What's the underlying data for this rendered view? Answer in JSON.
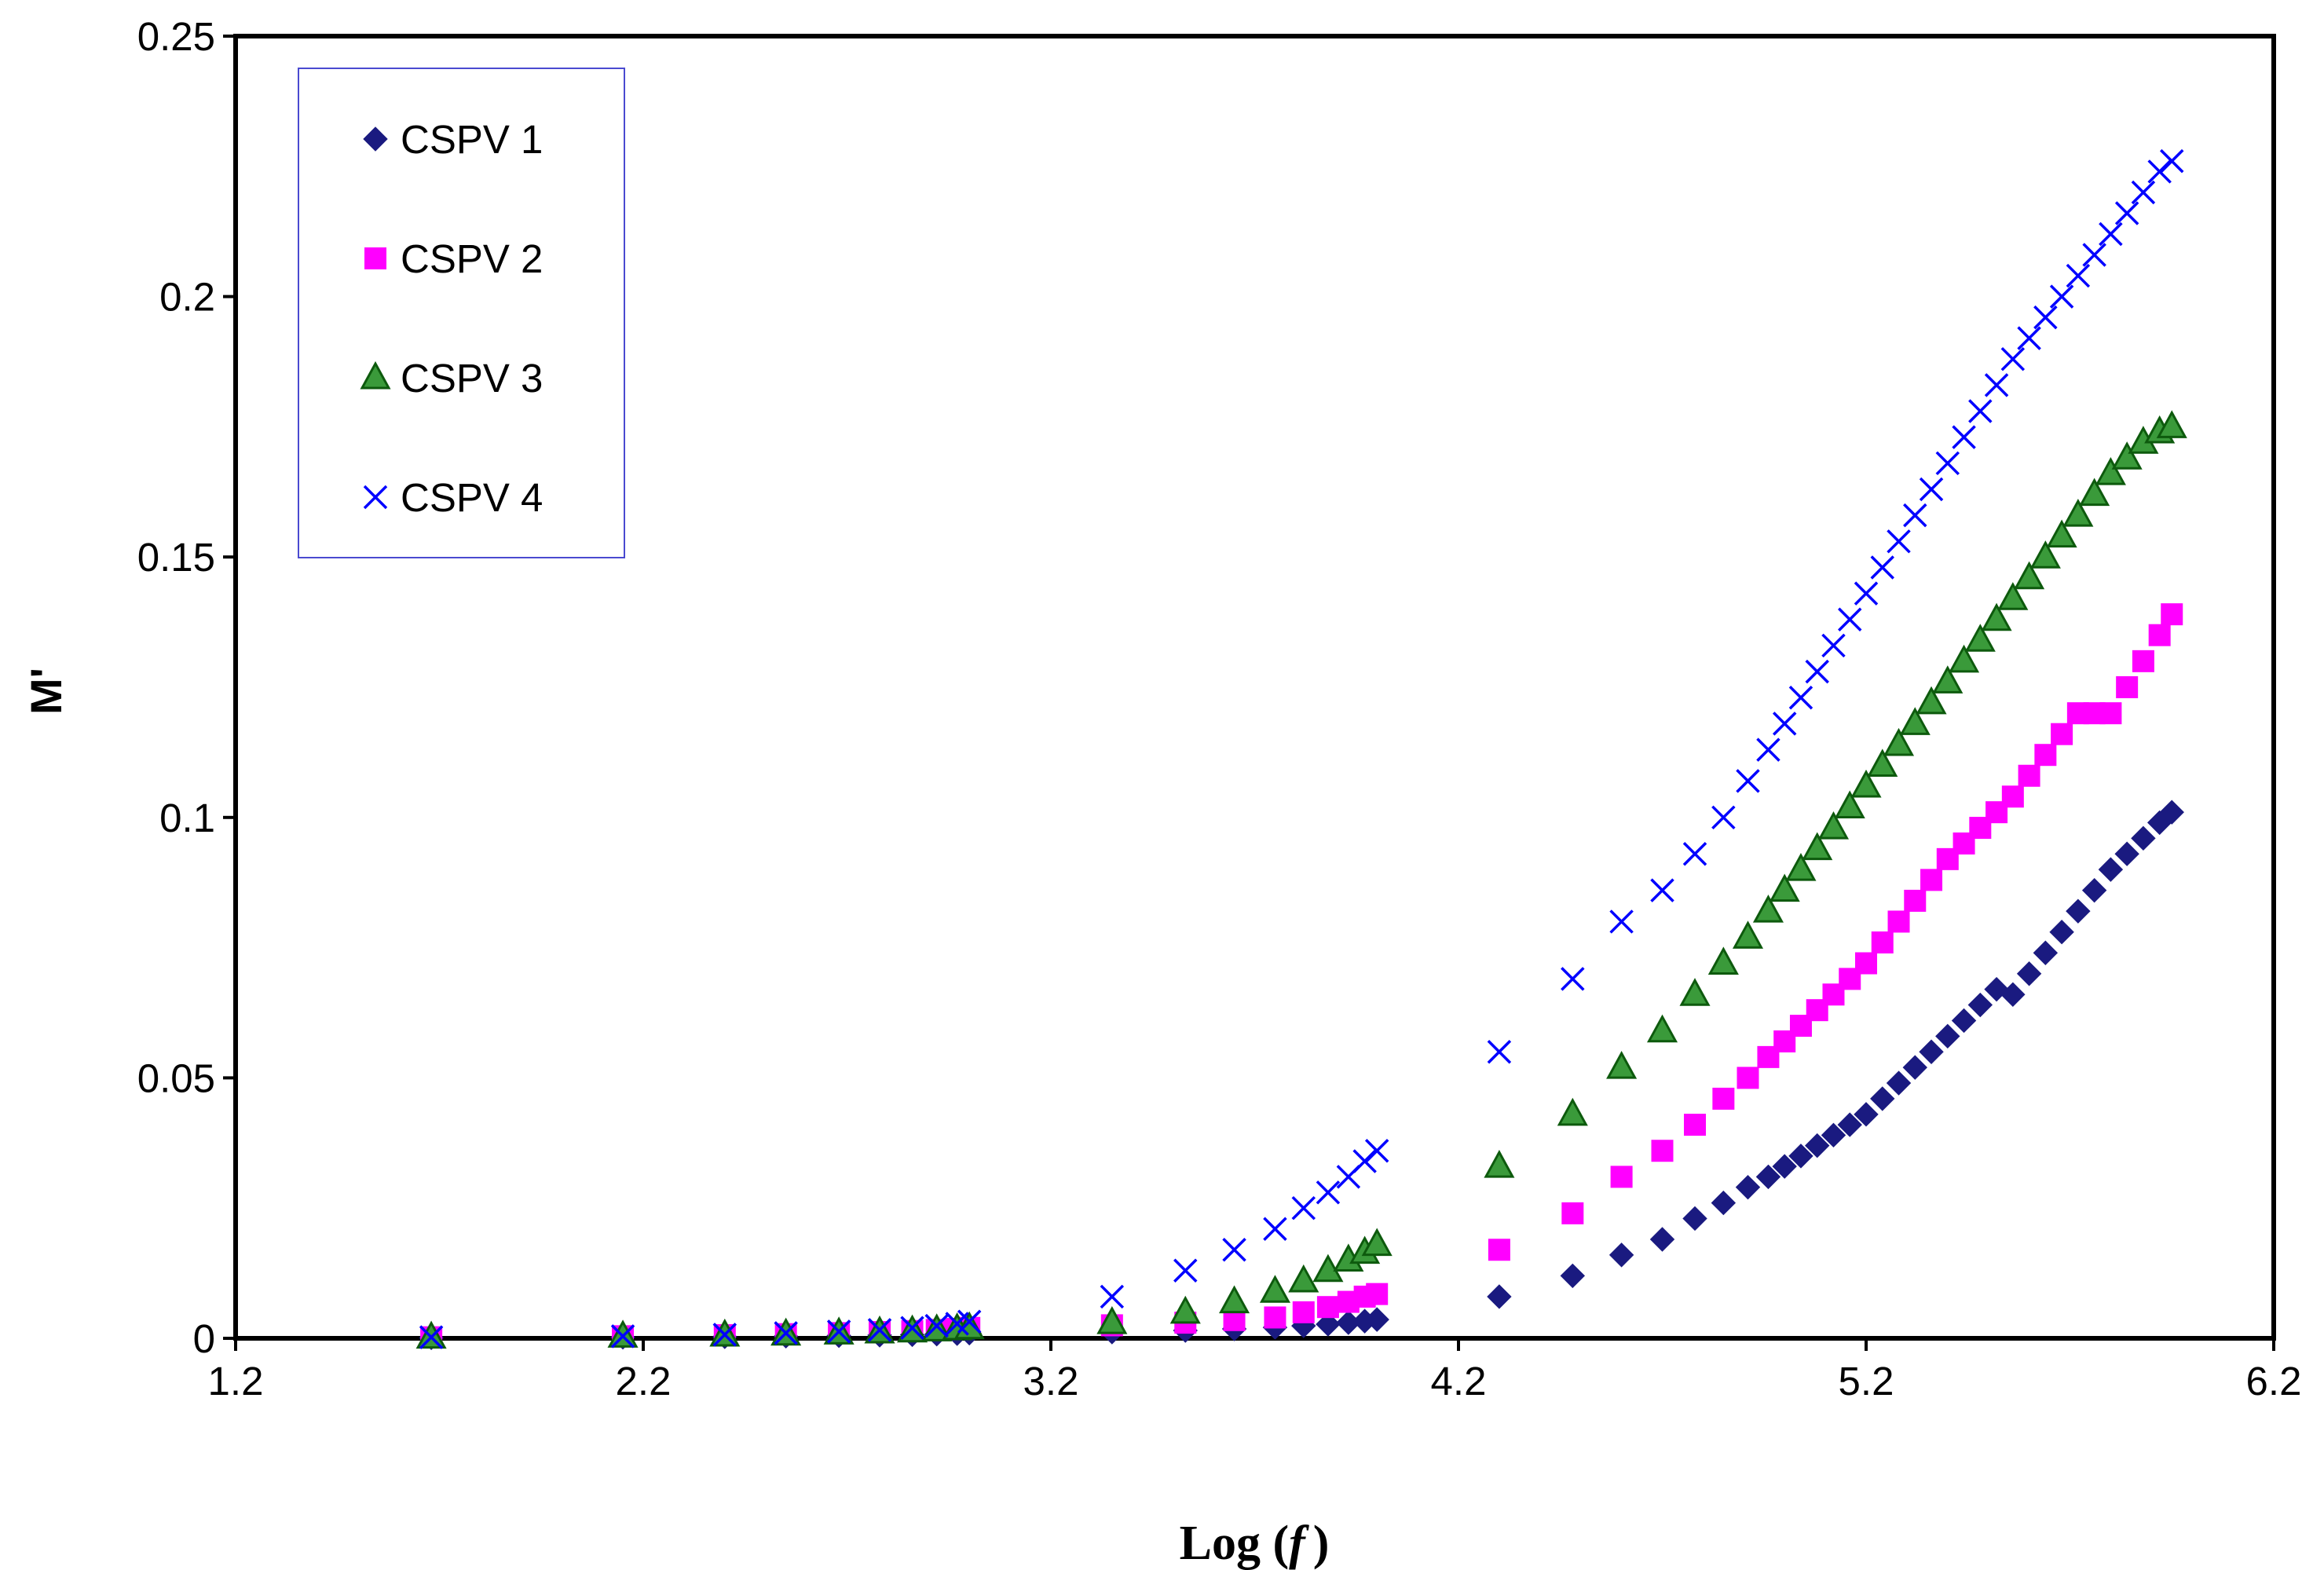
{
  "chart_data": {
    "type": "scatter",
    "xlabel": "Log (f)",
    "xlabel_main": "Log (",
    "xlabel_var": "f",
    "xlabel_close": ")",
    "ylabel": "M'",
    "xlim": [
      1.2,
      6.2
    ],
    "ylim": [
      0,
      0.25
    ],
    "xticks": [
      "1.2",
      "2.2",
      "3.2",
      "4.2",
      "5.2",
      "6.2"
    ],
    "yticks": [
      "0",
      "0.05",
      "0.1",
      "0.15",
      "0.2",
      "0.25"
    ],
    "legend_position": "top-left",
    "grid": false,
    "colors": {
      "CSPV 1": "#1A1A80",
      "CSPV 2": "#FF00FF",
      "CSPV 3": "#1E8B1E",
      "CSPV 4": "#0000FF"
    },
    "series": [
      {
        "name": "CSPV 1",
        "marker": "diamond",
        "x": [
          1.68,
          2.15,
          2.4,
          2.55,
          2.68,
          2.78,
          2.86,
          2.92,
          2.97,
          3.0,
          3.35,
          3.53,
          3.65,
          3.75,
          3.82,
          3.88,
          3.93,
          3.97,
          4.0,
          4.3,
          4.48,
          4.6,
          4.7,
          4.78,
          4.85,
          4.91,
          4.96,
          5.0,
          5.04,
          5.08,
          5.12,
          5.16,
          5.2,
          5.24,
          5.28,
          5.32,
          5.36,
          5.4,
          5.44,
          5.48,
          5.52,
          5.56,
          5.6,
          5.64,
          5.68,
          5.72,
          5.76,
          5.8,
          5.84,
          5.88,
          5.92,
          5.95
        ],
        "y": [
          0.0001,
          0.0002,
          0.0003,
          0.0004,
          0.0005,
          0.0006,
          0.0007,
          0.0008,
          0.0009,
          0.001,
          0.0012,
          0.0015,
          0.0018,
          0.0021,
          0.0024,
          0.0027,
          0.003,
          0.0033,
          0.0036,
          0.008,
          0.012,
          0.016,
          0.019,
          0.023,
          0.026,
          0.029,
          0.031,
          0.033,
          0.035,
          0.037,
          0.039,
          0.041,
          0.043,
          0.046,
          0.049,
          0.052,
          0.055,
          0.058,
          0.061,
          0.064,
          0.067,
          0.066,
          0.07,
          0.074,
          0.078,
          0.082,
          0.086,
          0.09,
          0.093,
          0.096,
          0.099,
          0.101
        ]
      },
      {
        "name": "CSPV 2",
        "marker": "square",
        "x": [
          1.68,
          2.15,
          2.4,
          2.55,
          2.68,
          2.78,
          2.86,
          2.92,
          2.97,
          3.0,
          3.35,
          3.53,
          3.65,
          3.75,
          3.82,
          3.88,
          3.93,
          3.97,
          4.0,
          4.3,
          4.48,
          4.6,
          4.7,
          4.78,
          4.85,
          4.91,
          4.96,
          5.0,
          5.04,
          5.08,
          5.12,
          5.16,
          5.2,
          5.24,
          5.28,
          5.32,
          5.36,
          5.4,
          5.44,
          5.48,
          5.52,
          5.56,
          5.6,
          5.64,
          5.68,
          5.72,
          5.76,
          5.8,
          5.84,
          5.88,
          5.92,
          5.95
        ],
        "y": [
          0.0002,
          0.0004,
          0.0006,
          0.0008,
          0.001,
          0.0012,
          0.0014,
          0.0016,
          0.0018,
          0.002,
          0.0025,
          0.003,
          0.0035,
          0.004,
          0.005,
          0.006,
          0.007,
          0.008,
          0.0085,
          0.017,
          0.024,
          0.031,
          0.036,
          0.041,
          0.046,
          0.05,
          0.054,
          0.057,
          0.06,
          0.063,
          0.066,
          0.069,
          0.072,
          0.076,
          0.08,
          0.084,
          0.088,
          0.092,
          0.095,
          0.098,
          0.101,
          0.104,
          0.108,
          0.112,
          0.116,
          0.12,
          0.12,
          0.12,
          0.125,
          0.13,
          0.135,
          0.139
        ]
      },
      {
        "name": "CSPV 3",
        "marker": "triangle",
        "x": [
          1.68,
          2.15,
          2.4,
          2.55,
          2.68,
          2.78,
          2.86,
          2.92,
          2.97,
          3.0,
          3.35,
          3.53,
          3.65,
          3.75,
          3.82,
          3.88,
          3.93,
          3.97,
          4.0,
          4.3,
          4.48,
          4.6,
          4.7,
          4.78,
          4.85,
          4.91,
          4.96,
          5.0,
          5.04,
          5.08,
          5.12,
          5.16,
          5.2,
          5.24,
          5.28,
          5.32,
          5.36,
          5.4,
          5.44,
          5.48,
          5.52,
          5.56,
          5.6,
          5.64,
          5.68,
          5.72,
          5.76,
          5.8,
          5.84,
          5.88,
          5.92,
          5.95
        ],
        "y": [
          0.0002,
          0.0004,
          0.0006,
          0.0008,
          0.001,
          0.0012,
          0.0014,
          0.0016,
          0.0018,
          0.002,
          0.003,
          0.005,
          0.007,
          0.009,
          0.011,
          0.013,
          0.015,
          0.0165,
          0.018,
          0.033,
          0.043,
          0.052,
          0.059,
          0.066,
          0.072,
          0.077,
          0.082,
          0.086,
          0.09,
          0.094,
          0.098,
          0.102,
          0.106,
          0.11,
          0.114,
          0.118,
          0.122,
          0.126,
          0.13,
          0.134,
          0.138,
          0.142,
          0.146,
          0.15,
          0.154,
          0.158,
          0.162,
          0.166,
          0.169,
          0.172,
          0.174,
          0.175
        ]
      },
      {
        "name": "CSPV 4",
        "marker": "x",
        "x": [
          1.68,
          2.15,
          2.4,
          2.55,
          2.68,
          2.78,
          2.86,
          2.92,
          2.97,
          3.0,
          3.35,
          3.53,
          3.65,
          3.75,
          3.82,
          3.88,
          3.93,
          3.97,
          4.0,
          4.3,
          4.48,
          4.6,
          4.7,
          4.78,
          4.85,
          4.91,
          4.96,
          5.0,
          5.04,
          5.08,
          5.12,
          5.16,
          5.2,
          5.24,
          5.28,
          5.32,
          5.36,
          5.4,
          5.44,
          5.48,
          5.52,
          5.56,
          5.6,
          5.64,
          5.68,
          5.72,
          5.76,
          5.8,
          5.84,
          5.88,
          5.92,
          5.95
        ],
        "y": [
          0.0002,
          0.0004,
          0.0007,
          0.001,
          0.0013,
          0.0016,
          0.002,
          0.0024,
          0.0028,
          0.0032,
          0.008,
          0.013,
          0.017,
          0.021,
          0.025,
          0.028,
          0.031,
          0.034,
          0.036,
          0.055,
          0.069,
          0.08,
          0.086,
          0.093,
          0.1,
          0.107,
          0.113,
          0.118,
          0.123,
          0.128,
          0.133,
          0.138,
          0.143,
          0.148,
          0.153,
          0.158,
          0.163,
          0.168,
          0.173,
          0.178,
          0.183,
          0.188,
          0.192,
          0.196,
          0.2,
          0.204,
          0.208,
          0.212,
          0.216,
          0.22,
          0.224,
          0.226
        ]
      }
    ]
  }
}
